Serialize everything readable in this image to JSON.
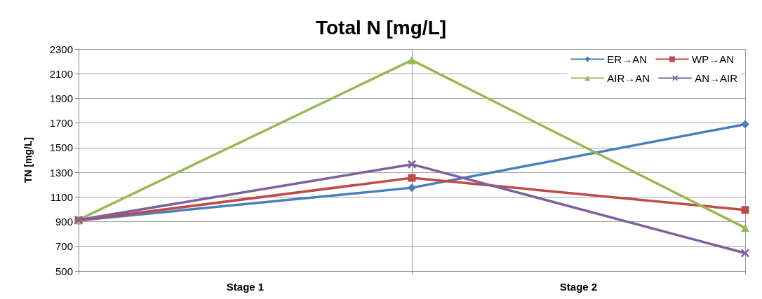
{
  "chart_data": {
    "type": "line",
    "title": "Total N [mg/L]",
    "ylabel": "TN [mg/L]",
    "categories": [
      null,
      null,
      null
    ],
    "annotations": [
      "Stage 1",
      "Stage 2"
    ],
    "ylim": [
      500,
      2300
    ],
    "yticks": [
      500,
      700,
      900,
      1100,
      1300,
      1500,
      1700,
      1900,
      2100,
      2300
    ],
    "grid": true,
    "legend": "top right",
    "line_style": "solid",
    "series": [
      {
        "name": "ER→AN",
        "color": "#4a7ebb",
        "marker": "diamond",
        "values": [
          910,
          1175,
          1690
        ]
      },
      {
        "name": "WP→AN",
        "color": "#be4b48",
        "marker": "square",
        "values": [
          910,
          1255,
          995
        ]
      },
      {
        "name": "AIR→AN",
        "color": "#98b954",
        "marker": "triangle",
        "values": [
          915,
          2210,
          850
        ]
      },
      {
        "name": "AN→AIR",
        "color": "#7d60a0",
        "marker": "cross",
        "values": [
          915,
          1365,
          645
        ]
      }
    ]
  }
}
